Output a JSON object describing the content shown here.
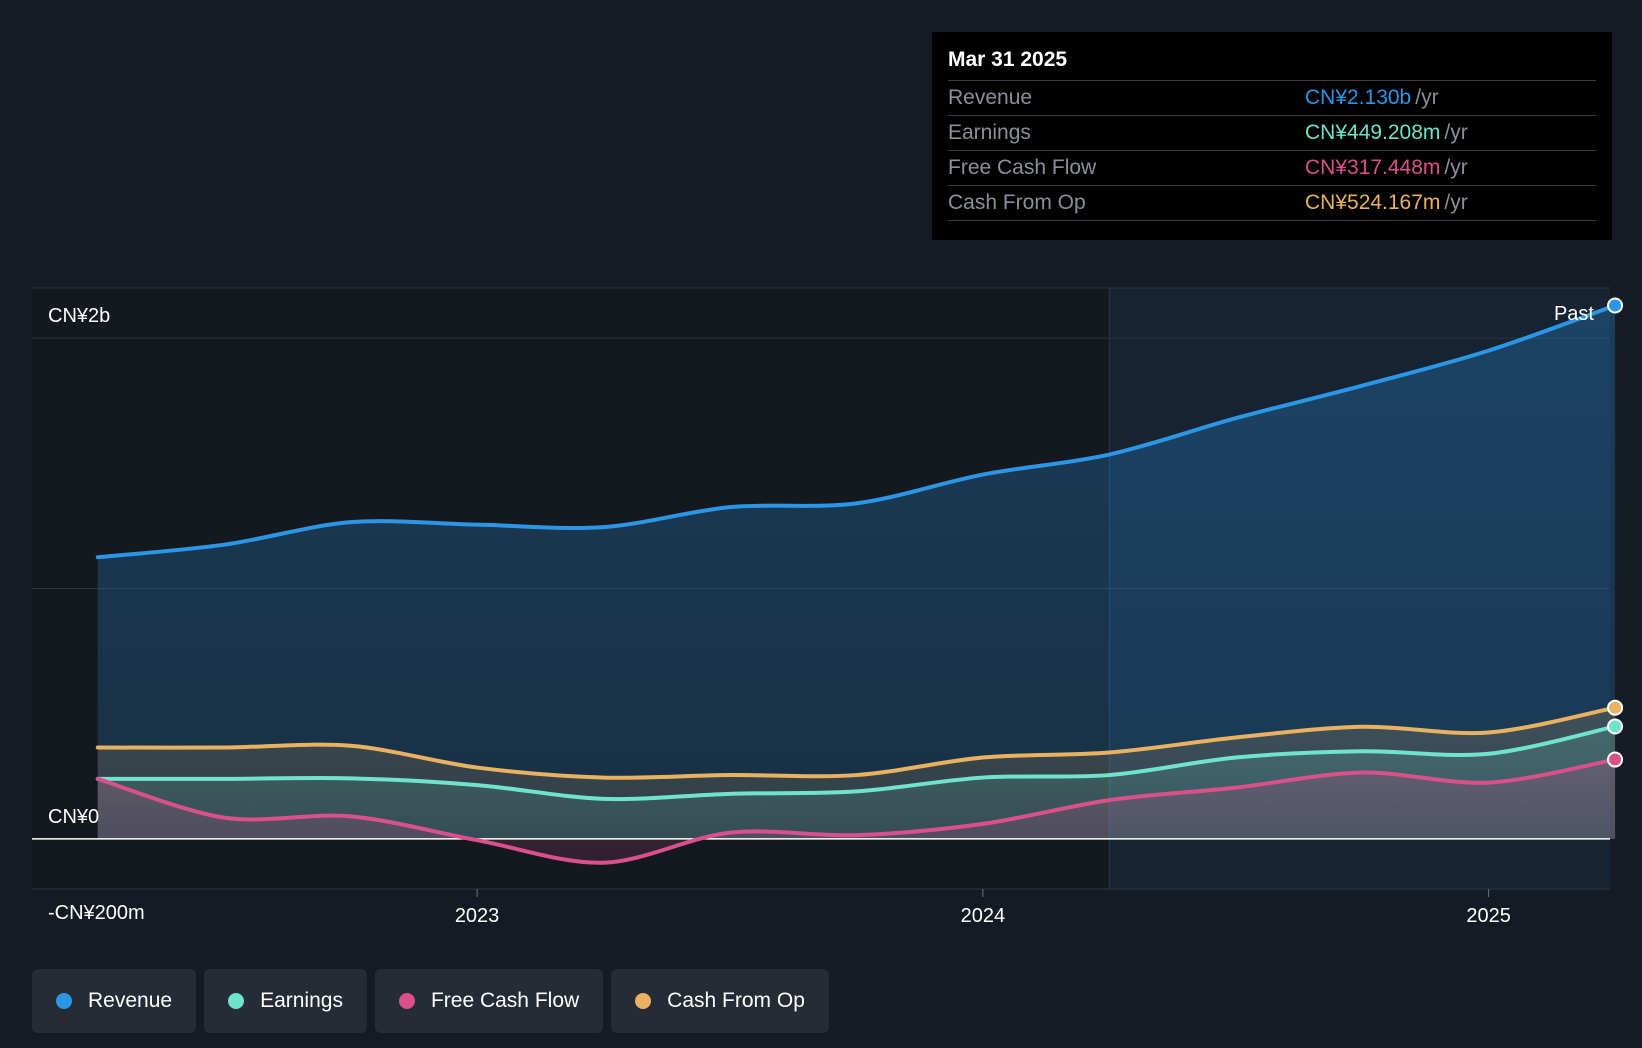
{
  "tooltip": {
    "date": "Mar 31 2025",
    "rows": [
      {
        "label": "Revenue",
        "value": "CN¥2.130b",
        "unit": "/yr",
        "color": "#2b96e6"
      },
      {
        "label": "Earnings",
        "value": "CN¥449.208m",
        "unit": "/yr",
        "color": "#6fe3cc"
      },
      {
        "label": "Free Cash Flow",
        "value": "CN¥317.448m",
        "unit": "/yr",
        "color": "#d9508a"
      },
      {
        "label": "Cash From Op",
        "value": "CN¥524.167m",
        "unit": "/yr",
        "color": "#e8b260"
      }
    ]
  },
  "legend": [
    {
      "label": "Revenue",
      "color": "#2b96e6"
    },
    {
      "label": "Earnings",
      "color": "#6fe3cc"
    },
    {
      "label": "Free Cash Flow",
      "color": "#d9508a"
    },
    {
      "label": "Cash From Op",
      "color": "#e8b260"
    }
  ],
  "chart_data": {
    "type": "area",
    "title": "",
    "xlabel": "",
    "ylabel": "",
    "ylim": [
      -200,
      2200
    ],
    "y_tick_labels": [
      {
        "label": "CN¥2b",
        "value": 2000
      },
      {
        "label": "CN¥0",
        "value": 0
      },
      {
        "label": "-CN¥200m",
        "value": -200
      }
    ],
    "x_ticks": [
      {
        "label": "2023",
        "x": 2023.0
      },
      {
        "label": "2024",
        "x": 2024.0
      },
      {
        "label": "2025",
        "x": 2025.0
      }
    ],
    "xlim": [
      2022.12,
      2025.24
    ],
    "past_label": "Past",
    "forecast_start": 2024.25,
    "x": [
      2022.25,
      2022.5,
      2022.75,
      2023.0,
      2023.25,
      2023.5,
      2023.75,
      2024.0,
      2024.25,
      2024.5,
      2024.75,
      2025.0,
      2025.25
    ],
    "series": [
      {
        "name": "Revenue",
        "color": "#2b96e6",
        "values": [
          1125,
          1175,
          1265,
          1255,
          1245,
          1325,
          1340,
          1455,
          1535,
          1680,
          1810,
          1950,
          2130
        ]
      },
      {
        "name": "Earnings",
        "color": "#6fe3cc",
        "values": [
          240,
          240,
          242,
          215,
          160,
          180,
          190,
          245,
          255,
          325,
          350,
          340,
          449
        ]
      },
      {
        "name": "Free Cash Flow",
        "color": "#d9508a",
        "values": [
          240,
          85,
          90,
          -5,
          -95,
          25,
          15,
          60,
          155,
          205,
          265,
          225,
          317
        ]
      },
      {
        "name": "Cash From Op",
        "color": "#e8b260",
        "values": [
          365,
          365,
          372,
          285,
          245,
          255,
          255,
          325,
          345,
          405,
          448,
          425,
          524
        ]
      }
    ]
  }
}
